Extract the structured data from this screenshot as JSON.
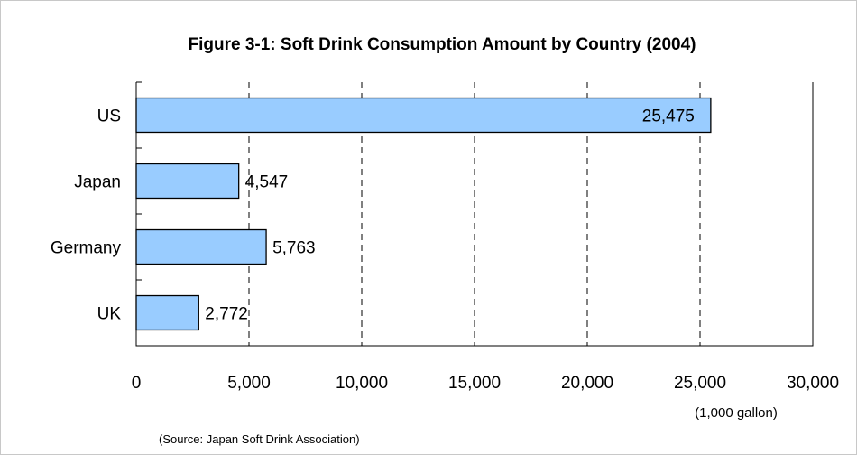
{
  "chart_data": {
    "type": "bar",
    "orientation": "horizontal",
    "title": "Figure 3-1: Soft Drink Consumption Amount by Country (2004)",
    "categories": [
      "US",
      "Japan",
      "Germany",
      "UK"
    ],
    "values": [
      25475,
      4547,
      5763,
      2772
    ],
    "data_labels": [
      "25,475",
      "4,547",
      "5,763",
      "2,772"
    ],
    "xlim": [
      0,
      30000
    ],
    "x_ticks": [
      0,
      5000,
      10000,
      15000,
      20000,
      25000,
      30000
    ],
    "x_tick_labels": [
      "0",
      "5,000",
      "10,000",
      "15,000",
      "20,000",
      "25,000",
      "30,000"
    ],
    "unit_label": "(1,000 gallon)",
    "source": "(Source: Japan Soft Drink Association)",
    "grid": "vertical dashed",
    "bar_color": "#99ccff"
  }
}
